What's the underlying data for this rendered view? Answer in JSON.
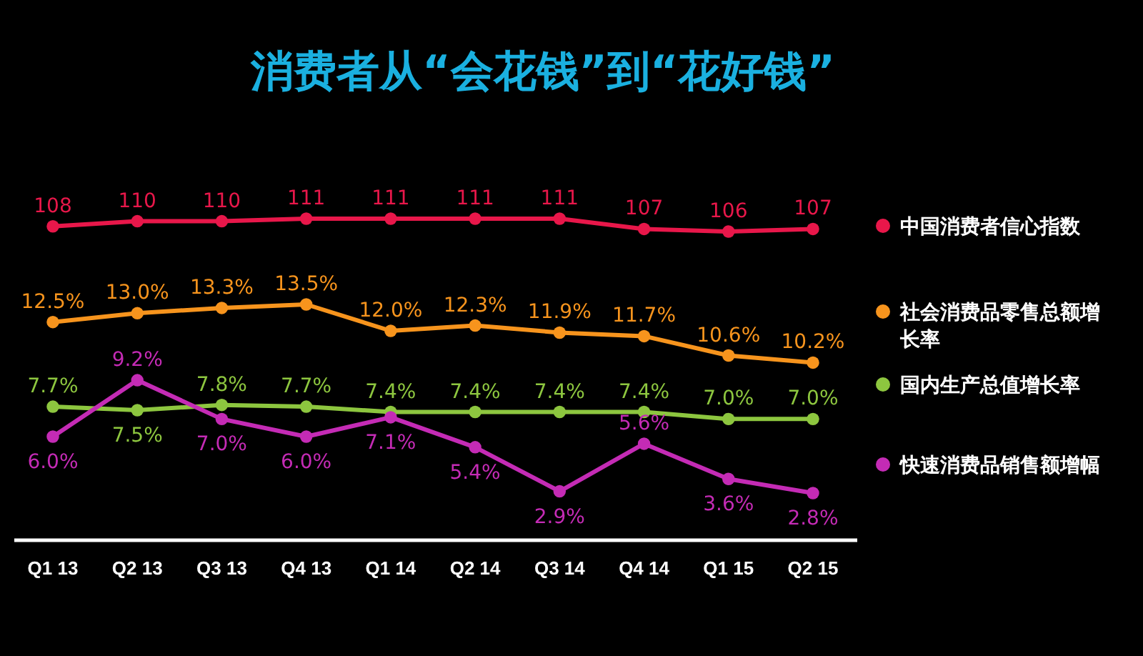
{
  "chart_data": [
    {
      "type": "line",
      "title": "消费者从“会花钱”到“花好钱”",
      "categories": [
        null,
        null,
        null,
        null,
        null,
        null,
        null,
        null,
        null,
        null
      ],
      "series": [
        {
          "name": "中国消费者信心指数",
          "color": "#e8174a",
          "values": [
            108,
            110,
            110,
            111,
            111,
            111,
            111,
            107,
            106,
            107
          ],
          "value_labels": [
            "108",
            "110",
            "110",
            "111",
            "111",
            "111",
            "111",
            "107",
            "106",
            "107"
          ]
        }
      ],
      "tick_labels": false,
      "marker": "circle",
      "line_style": "solid",
      "legend": "right",
      "grid": false
    },
    {
      "type": "line",
      "categories": [
        "Q1 13",
        "Q2 13",
        "Q3 13",
        "Q4 13",
        "Q1 14",
        "Q2 14",
        "Q3 14",
        "Q4 14",
        "Q1 15",
        "Q2 15"
      ],
      "series": [
        {
          "name": "社会消费品零售总额增长率",
          "color": "#f7941d",
          "values": [
            12.5,
            13.0,
            13.3,
            13.5,
            12.0,
            12.3,
            11.9,
            11.7,
            10.6,
            10.2
          ],
          "value_labels": [
            "12.5%",
            "13.0%",
            "13.3%",
            "13.5%",
            "12.0%",
            "12.3%",
            "11.9%",
            "11.7%",
            "10.6%",
            "10.2%"
          ]
        },
        {
          "name": "国内生产总值增长率",
          "color": "#8dc63f",
          "values": [
            7.7,
            7.5,
            7.8,
            7.7,
            7.4,
            7.4,
            7.4,
            7.4,
            7.0,
            7.0
          ],
          "value_labels": [
            "7.7%",
            "7.5%",
            "7.8%",
            "7.7%",
            "7.4%",
            "7.4%",
            "7.4%",
            "7.4%",
            "7.0%",
            "7.0%"
          ]
        },
        {
          "name": "快速消费品销售额增幅",
          "color": "#c42bb5",
          "values": [
            6.0,
            9.2,
            7.0,
            6.0,
            7.1,
            5.4,
            2.9,
            5.6,
            3.6,
            2.8
          ],
          "value_labels": [
            "6.0%",
            "9.2%",
            "7.0%",
            "6.0%",
            "7.1%",
            "5.4%",
            "2.9%",
            "5.6%",
            "3.6%",
            "2.8%"
          ]
        }
      ],
      "tick_labels": "x",
      "marker": "circle",
      "line_style": "solid",
      "legend": "right",
      "grid": false
    }
  ]
}
